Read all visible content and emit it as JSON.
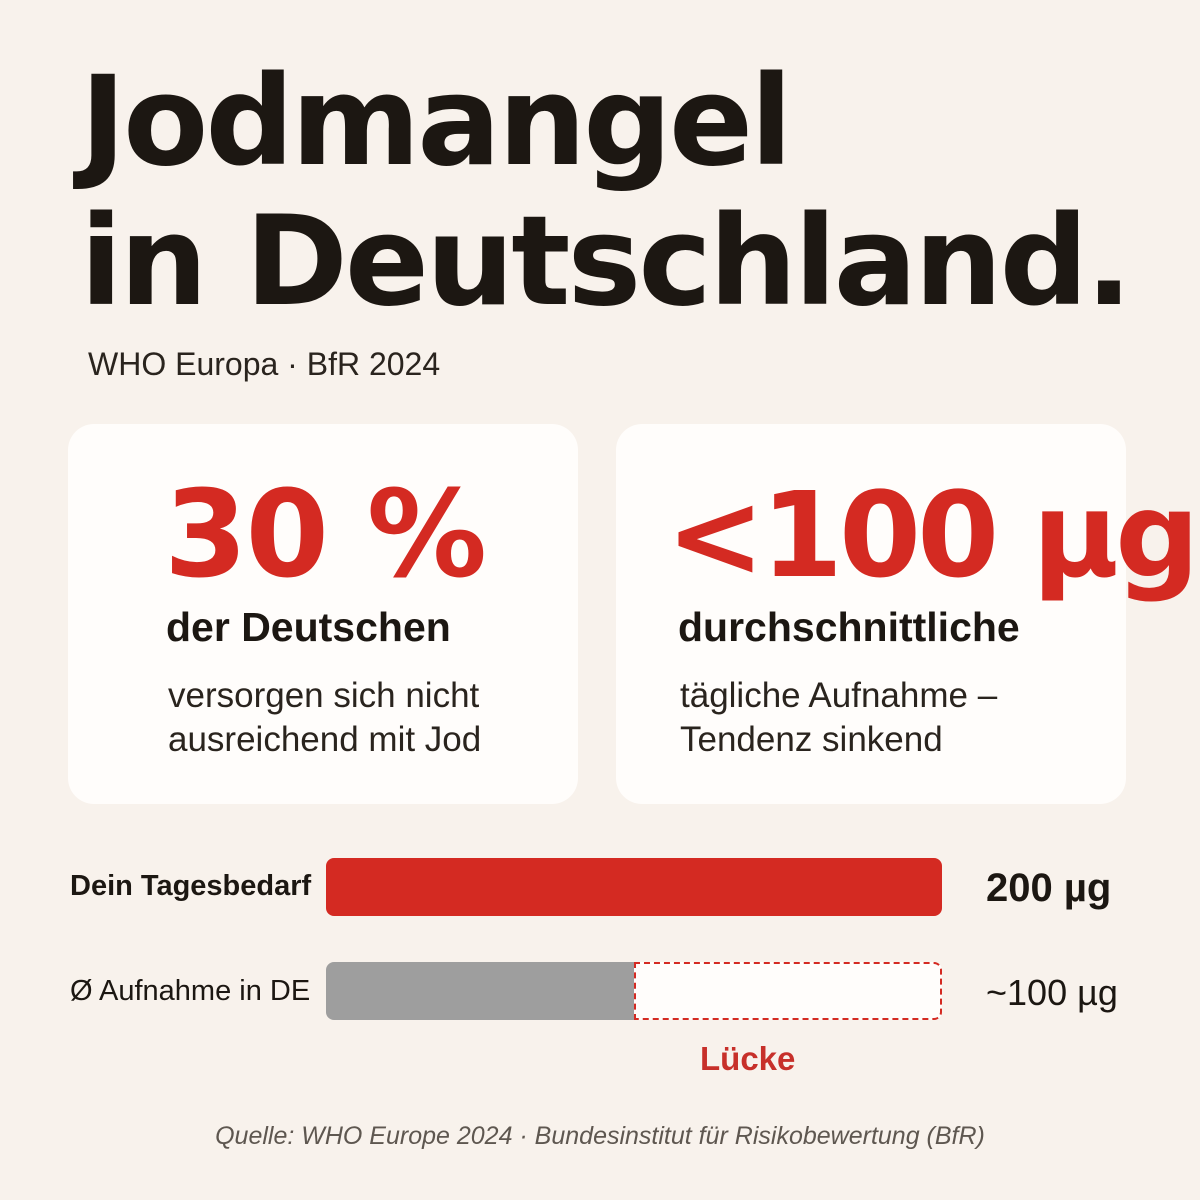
{
  "header": {
    "title_line1": "Jodmangel",
    "title_line2": "in Deutschland.",
    "subtitle": "WHO Europa · BfR 2024"
  },
  "cards": [
    {
      "value": "30 %",
      "lead": "der Deutschen",
      "desc_line1": "versorgen sich nicht",
      "desc_line2": "ausreichend mit Jod"
    },
    {
      "value": "<100 µg",
      "lead": "durchschnittliche",
      "desc_line1": "tägliche Aufnahme –",
      "desc_line2": "Tendenz sinkend"
    }
  ],
  "comparison": {
    "scale_max": 200,
    "requirement": {
      "label": "Dein Tagesbedarf",
      "value_text": "200 µg",
      "amount": 200
    },
    "intake": {
      "label": "Ø Aufnahme in DE",
      "value_text": "~100 µg",
      "amount": 100
    },
    "gap_label": "Lücke"
  },
  "source": "Quelle: WHO Europe 2024 · Bundesinstitut für Risikobewertung (BfR)",
  "colors": {
    "accent_red": "#d42a22",
    "intake_gray": "#9e9e9e",
    "background": "#f8f2ec",
    "card": "#fffdfb",
    "text_dark": "#1c1712"
  }
}
